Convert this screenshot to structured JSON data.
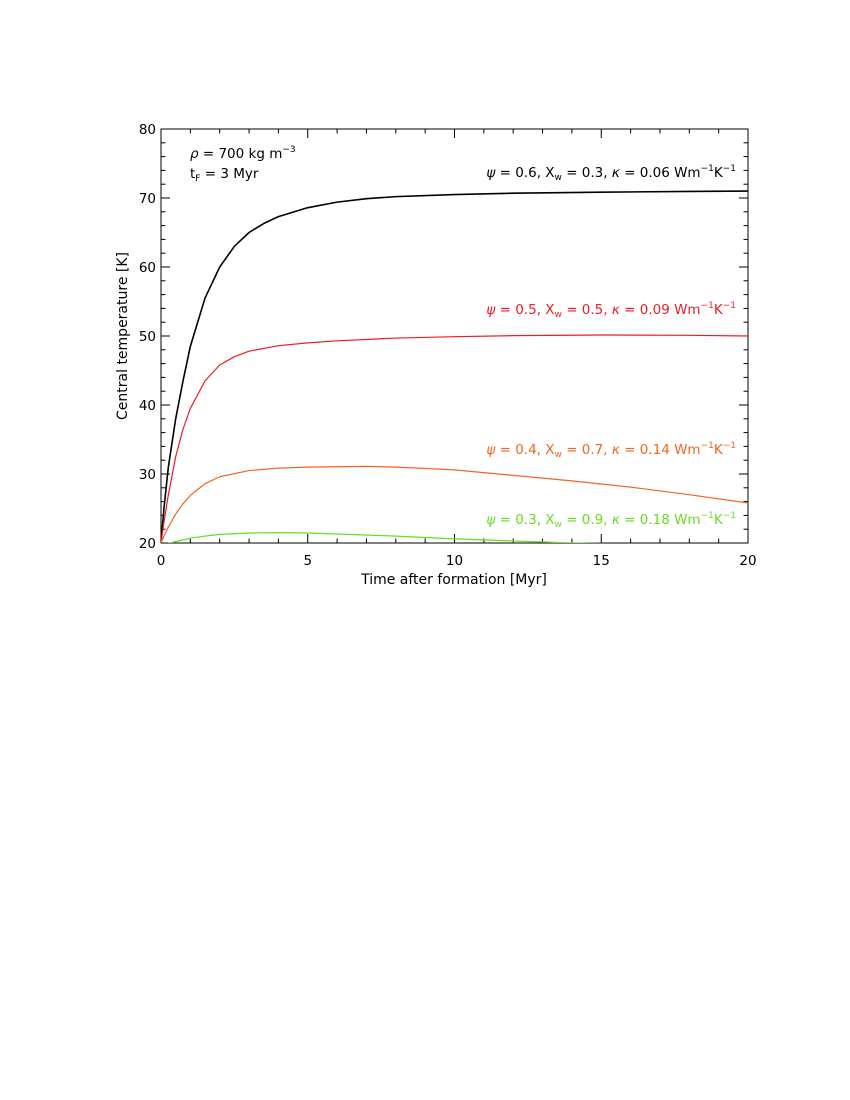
{
  "chart_data": {
    "type": "line",
    "xlabel": "Time after formation [Myr]",
    "ylabel": "Central temperature [K]",
    "xlim": [
      0,
      20
    ],
    "ylim": [
      20,
      80
    ],
    "x_ticks": [
      0,
      5,
      10,
      15,
      20
    ],
    "y_ticks": [
      20,
      30,
      40,
      50,
      60,
      70,
      80
    ],
    "x_tick_labels": [
      "0",
      "5",
      "10",
      "15",
      "20"
    ],
    "y_tick_labels": [
      "20",
      "30",
      "40",
      "50",
      "60",
      "70",
      "80"
    ],
    "grid": false,
    "annotations": {
      "rho": {
        "symbol": "ρ",
        "text": " = 700 kg m",
        "sup": "−3"
      },
      "tf": {
        "base": "t",
        "sub": "F",
        "text": " = 3 Myr"
      }
    },
    "series": [
      {
        "color": "#000000",
        "label": {
          "psi": "ψ",
          "a": " = 0.6, X",
          "w": "w",
          "b": " = 0.3, ",
          "kappa": "κ",
          "c": " = 0.06 Wm",
          "s1": "−1",
          "k": "K",
          "s2": "−1"
        },
        "points": [
          [
            0,
            20
          ],
          [
            0.1,
            25
          ],
          [
            0.25,
            31
          ],
          [
            0.5,
            38
          ],
          [
            0.75,
            43.5
          ],
          [
            1,
            48.5
          ],
          [
            1.5,
            55.5
          ],
          [
            2,
            60
          ],
          [
            2.5,
            63
          ],
          [
            3,
            65
          ],
          [
            3.5,
            66.3
          ],
          [
            4,
            67.3
          ],
          [
            5,
            68.6
          ],
          [
            6,
            69.4
          ],
          [
            7,
            69.9
          ],
          [
            8,
            70.2
          ],
          [
            10,
            70.5
          ],
          [
            12,
            70.7
          ],
          [
            15,
            70.85
          ],
          [
            18,
            70.95
          ],
          [
            20,
            71
          ]
        ]
      },
      {
        "color": "#ee1c24",
        "label": {
          "psi": "ψ",
          "a": " = 0.5, X",
          "w": "w",
          "b": " = 0.5, ",
          "kappa": "κ",
          "c": " = 0.09 Wm",
          "s1": "−1",
          "k": "K",
          "s2": "−1"
        },
        "points": [
          [
            0,
            20
          ],
          [
            0.1,
            23
          ],
          [
            0.25,
            27
          ],
          [
            0.5,
            32.5
          ],
          [
            0.75,
            36.5
          ],
          [
            1,
            39.5
          ],
          [
            1.5,
            43.5
          ],
          [
            2,
            45.8
          ],
          [
            2.5,
            47
          ],
          [
            3,
            47.8
          ],
          [
            4,
            48.6
          ],
          [
            5,
            49
          ],
          [
            6,
            49.3
          ],
          [
            8,
            49.7
          ],
          [
            10,
            49.9
          ],
          [
            12,
            50.05
          ],
          [
            15,
            50.15
          ],
          [
            18,
            50.1
          ],
          [
            20,
            50
          ]
        ]
      },
      {
        "color": "#f26522",
        "label": {
          "psi": "ψ",
          "a": " = 0.4, X",
          "w": "w",
          "b": " = 0.7, ",
          "kappa": "κ",
          "c": " = 0.14 Wm",
          "s1": "−1",
          "k": "K",
          "s2": "−1"
        },
        "points": [
          [
            0,
            20
          ],
          [
            0.1,
            21
          ],
          [
            0.25,
            22.3
          ],
          [
            0.5,
            24.2
          ],
          [
            0.75,
            25.7
          ],
          [
            1,
            26.9
          ],
          [
            1.5,
            28.6
          ],
          [
            2,
            29.6
          ],
          [
            3,
            30.5
          ],
          [
            4,
            30.85
          ],
          [
            5,
            31
          ],
          [
            6,
            31.05
          ],
          [
            7,
            31.1
          ],
          [
            8,
            31
          ],
          [
            10,
            30.6
          ],
          [
            12,
            29.8
          ],
          [
            14,
            29
          ],
          [
            16,
            28.1
          ],
          [
            18,
            27
          ],
          [
            20,
            25.8
          ]
        ]
      },
      {
        "color": "#66dd22",
        "label": {
          "psi": "ψ",
          "a": " = 0.3, X",
          "w": "w",
          "b": " = 0.9, ",
          "kappa": "κ",
          "c": " = 0.18 Wm",
          "s1": "−1",
          "k": "K",
          "s2": "−1"
        },
        "points": [
          [
            0,
            19.7
          ],
          [
            0.5,
            20.2
          ],
          [
            1,
            20.7
          ],
          [
            1.5,
            21
          ],
          [
            2,
            21.25
          ],
          [
            3,
            21.45
          ],
          [
            4,
            21.5
          ],
          [
            5,
            21.45
          ],
          [
            6,
            21.3
          ],
          [
            8,
            21
          ],
          [
            10,
            20.6
          ],
          [
            12,
            20.3
          ],
          [
            14,
            20
          ],
          [
            16,
            19.85
          ],
          [
            18,
            19.75
          ],
          [
            20,
            19.7
          ]
        ]
      }
    ]
  }
}
